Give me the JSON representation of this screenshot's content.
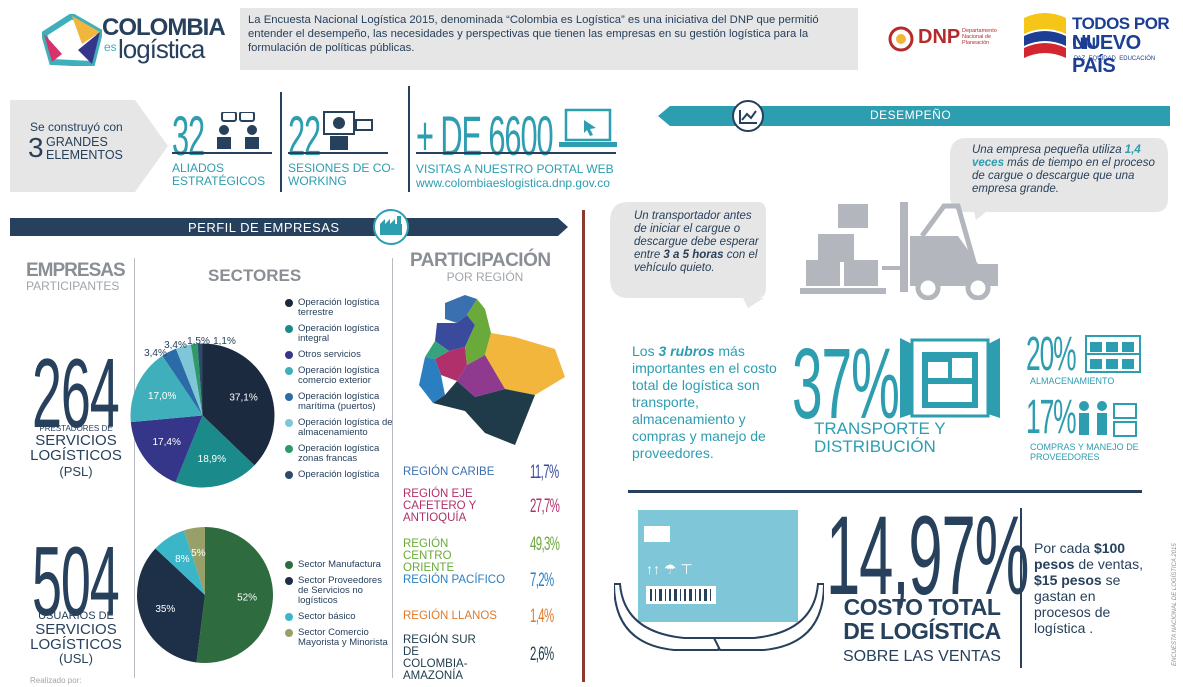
{
  "header": {
    "logo_line1": "COLOMBIA",
    "logo_es": "es",
    "logo_line2": "logística",
    "intro": "La Encuesta Nacional Logística 2015, denominada “Colombia es Logística” es una iniciativa del DNP que permitió entender el desempeño, las necesidades y perspectivas que tienen las empresas en su gestión logística para la formulación de políticas públicas.",
    "dnp": "DNP",
    "dnp_sub": "Departamento Nacional de Planeación",
    "gov_line1": "TODOS POR UN",
    "gov_line2": "NUEVO PAÍS",
    "gov_line3": "PAZ  EQUIDAD  EDUCACIÓN"
  },
  "elements": {
    "lead": "Se construyó con",
    "number": "3",
    "label": "GRANDES ELEMENTOS",
    "items": [
      {
        "value": "32",
        "label": "ALIADOS ESTRATÉGICOS"
      },
      {
        "value": "22",
        "label": "SESIONES DE CO-WORKING"
      },
      {
        "value": "+ DE 6600",
        "label": "VISITAS A NUESTRO PORTAL WEB",
        "url": "www.colombiaeslogistica.dnp.gov.co"
      }
    ]
  },
  "perfil": {
    "title": "PERFIL DE EMPRESAS",
    "empresas": "EMPRESAS",
    "participantes": "PARTICIPANTES",
    "psl_number": "264",
    "psl_line1": "PRESTADORES DE",
    "psl_line2": "SERVICIOS LOGÍSTICOS",
    "psl_line3": "(PSL)",
    "usl_number": "504",
    "usl_line1": "USUARIOS DE",
    "usl_line2": "SERVICIOS LOGÍSTICOS",
    "usl_line3": "(USL)",
    "credit": "Realizado por:"
  },
  "participacion": {
    "title": "PARTICIPACIÓN",
    "subtitle": "POR REGIÓN",
    "regions": [
      {
        "name": "REGIÓN CARIBE",
        "value": "11,7%"
      },
      {
        "name": "REGIÓN EJE CAFETERO Y ANTIOQUÍA",
        "value": "27,7%"
      },
      {
        "name": "REGIÓN CENTRO ORIENTE",
        "value": "49,3%"
      },
      {
        "name": "REGIÓN PACÍFICO",
        "value": "7,2%"
      },
      {
        "name": "REGIÓN LLANOS",
        "value": "1,4%"
      },
      {
        "name": "REGIÓN SUR DE COLOMBIA-AMAZONÍA",
        "value": "2,6%"
      }
    ]
  },
  "chart_data": [
    {
      "type": "pie",
      "title": "SECTORES",
      "categories": [
        "Operación logística terrestre",
        "Operación logística integral",
        "Otros servicios",
        "Operación logística comercio exterior",
        "Operación logística marítima (puertos)",
        "Operación logística de almacenamiento",
        "Operación logística zonas francas",
        "Operación logística"
      ],
      "values": [
        37.1,
        18.9,
        17.4,
        17.0,
        3.4,
        3.4,
        1.5,
        1.1
      ],
      "value_labels": [
        "37,1%",
        "18,9%",
        "17,4%",
        "17,0%",
        "3,4%",
        "3,4%",
        "1,5%",
        "1,1%"
      ],
      "colors": [
        "#1b2a3e",
        "#1a8a8a",
        "#35358a",
        "#3fb0bb",
        "#2b6ca8",
        "#7fc6d9",
        "#2e9a6a",
        "#2e4a6b"
      ]
    },
    {
      "type": "pie",
      "categories": [
        "Sector Manufactura",
        "Sector Proveedores de Servicios no logísticos",
        "Sector básico",
        "Sector Comercio Mayorista y Minorista"
      ],
      "values": [
        52,
        35,
        8,
        5
      ],
      "value_labels": [
        "52%",
        "35%",
        "8%",
        "5%"
      ],
      "colors": [
        "#2e6b3e",
        "#1e3047",
        "#3bb6c9",
        "#98a06a"
      ]
    }
  ],
  "desempeno": {
    "title": "DESEMPEÑO",
    "transportador": [
      "Un transportador antes de iniciar el cargue o descargue debe esperar entre ",
      "3 a 5 horas",
      " con el vehículo quieto."
    ],
    "empresa": [
      "Una empresa pequeña utiliza ",
      "1,4 veces",
      " más de tiempo en el proceso de cargue o descargue que una empresa grande."
    ],
    "rubros": [
      "Los ",
      "3 rubros",
      " más importantes en el costo total de logística son transporte, almacenamiento y compras y manejo de proveedores."
    ],
    "transporte_value": "37%",
    "transporte_label": "TRANSPORTE Y DISTRIBUCIÓN",
    "almacen_value": "20%",
    "almacen_label": "ALMACENAMIENTO",
    "compras_value": "17%",
    "compras_label": "COMPRAS Y MANEJO DE PROVEEDORES",
    "costo_value": "14,97%",
    "costo_line1": "COSTO TOTAL",
    "costo_line2": "DE LOGÍSTICA",
    "costo_line3": "SOBRE LAS VENTAS",
    "por_cada": [
      "Por cada ",
      "$100 pesos",
      " de ventas, ",
      "$15 pesos",
      " se gastan en procesos de logística ."
    ],
    "source": "ENCUESTA NACIONAL DE LOGÍSTICA 2015"
  }
}
